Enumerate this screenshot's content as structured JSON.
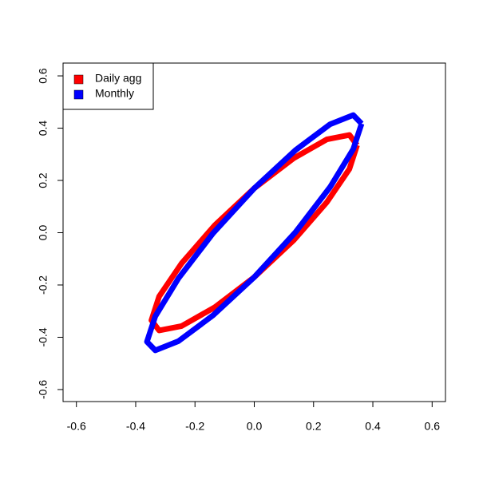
{
  "chart_data": {
    "type": "line",
    "xlim": [
      -0.645,
      0.645
    ],
    "ylim": [
      -0.646,
      0.649
    ],
    "xticks": [
      -0.6,
      -0.4,
      -0.2,
      {
        "value": 0,
        "label": "0.0"
      },
      0.2,
      0.4,
      0.6
    ],
    "yticks": [
      -0.6,
      -0.4,
      -0.2,
      {
        "value": 0,
        "label": "0.0"
      },
      0.2,
      0.4,
      0.6
    ],
    "legend": "topleft",
    "series": [
      {
        "name": "Daily agg",
        "color": "#ff0000",
        "x": [
          0.347,
          0.321,
          0.245,
          0.133,
          0,
          -0.133,
          -0.245,
          -0.321,
          -0.347,
          -0.321,
          -0.245,
          -0.133,
          0,
          0.133,
          0.245,
          0.321,
          0.347
        ],
        "values": [
          0.335,
          0.374,
          0.357,
          0.285,
          0.17,
          0.029,
          -0.117,
          -0.244,
          -0.335,
          -0.374,
          -0.357,
          -0.285,
          -0.17,
          -0.029,
          0.117,
          0.244,
          0.335
        ]
      },
      {
        "name": "Monthly",
        "color": "#0000ff",
        "x": [
          0.362,
          0.334,
          0.256,
          0.139,
          0,
          -0.139,
          -0.256,
          -0.334,
          -0.362,
          -0.334,
          -0.256,
          -0.139,
          0,
          0.139,
          0.256,
          0.334,
          0.362
        ],
        "values": [
          0.417,
          0.45,
          0.415,
          0.316,
          0.17,
          -0.002,
          -0.175,
          -0.32,
          -0.417,
          -0.45,
          -0.415,
          -0.316,
          -0.17,
          0.002,
          0.175,
          0.32,
          0.417
        ]
      }
    ]
  }
}
